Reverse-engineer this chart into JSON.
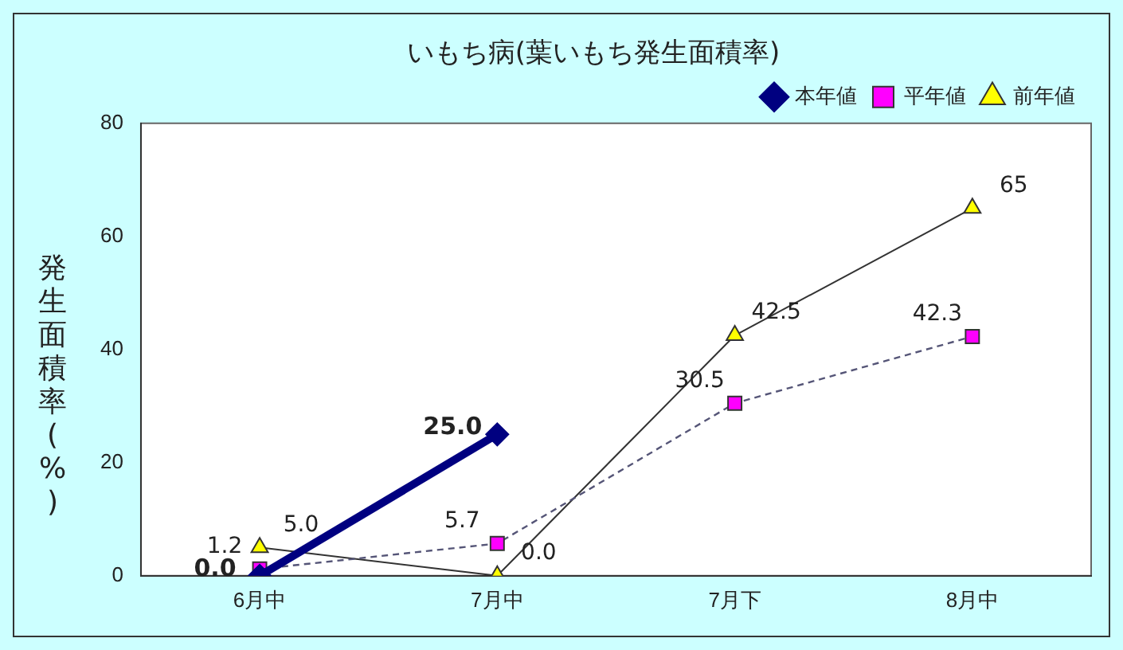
{
  "chart_data": {
    "type": "line",
    "title": "いもち病(葉いもち発生面積率)",
    "ylabel": "発生面積率(%)",
    "categories": [
      "6月中",
      "7月中",
      "7月下",
      "8月中"
    ],
    "ylim": [
      0,
      80
    ],
    "yticks": [
      0,
      20,
      40,
      60,
      80
    ],
    "grid": false,
    "legend": "top right",
    "series": [
      {
        "name": "本年値",
        "color": "#000080",
        "marker": "diamond",
        "line_style": "solid",
        "values": [
          0,
          25,
          null,
          null
        ],
        "value_labels": [
          "0.0",
          "25.0",
          null,
          null
        ]
      },
      {
        "name": "平年値",
        "color": "#ff00ff",
        "marker": "square",
        "line_style": "dashed",
        "values": [
          1.2,
          5.7,
          30.5,
          42.3
        ],
        "value_labels": [
          "1.2",
          "5.7",
          "30.5",
          "42.3"
        ]
      },
      {
        "name": "前年値",
        "color": "#ffff00",
        "marker": "triangle",
        "line_style": "solid",
        "values": [
          5,
          0,
          42.5,
          65
        ],
        "value_labels": [
          "5.0",
          "0.0",
          "42.5",
          "65"
        ]
      }
    ]
  }
}
